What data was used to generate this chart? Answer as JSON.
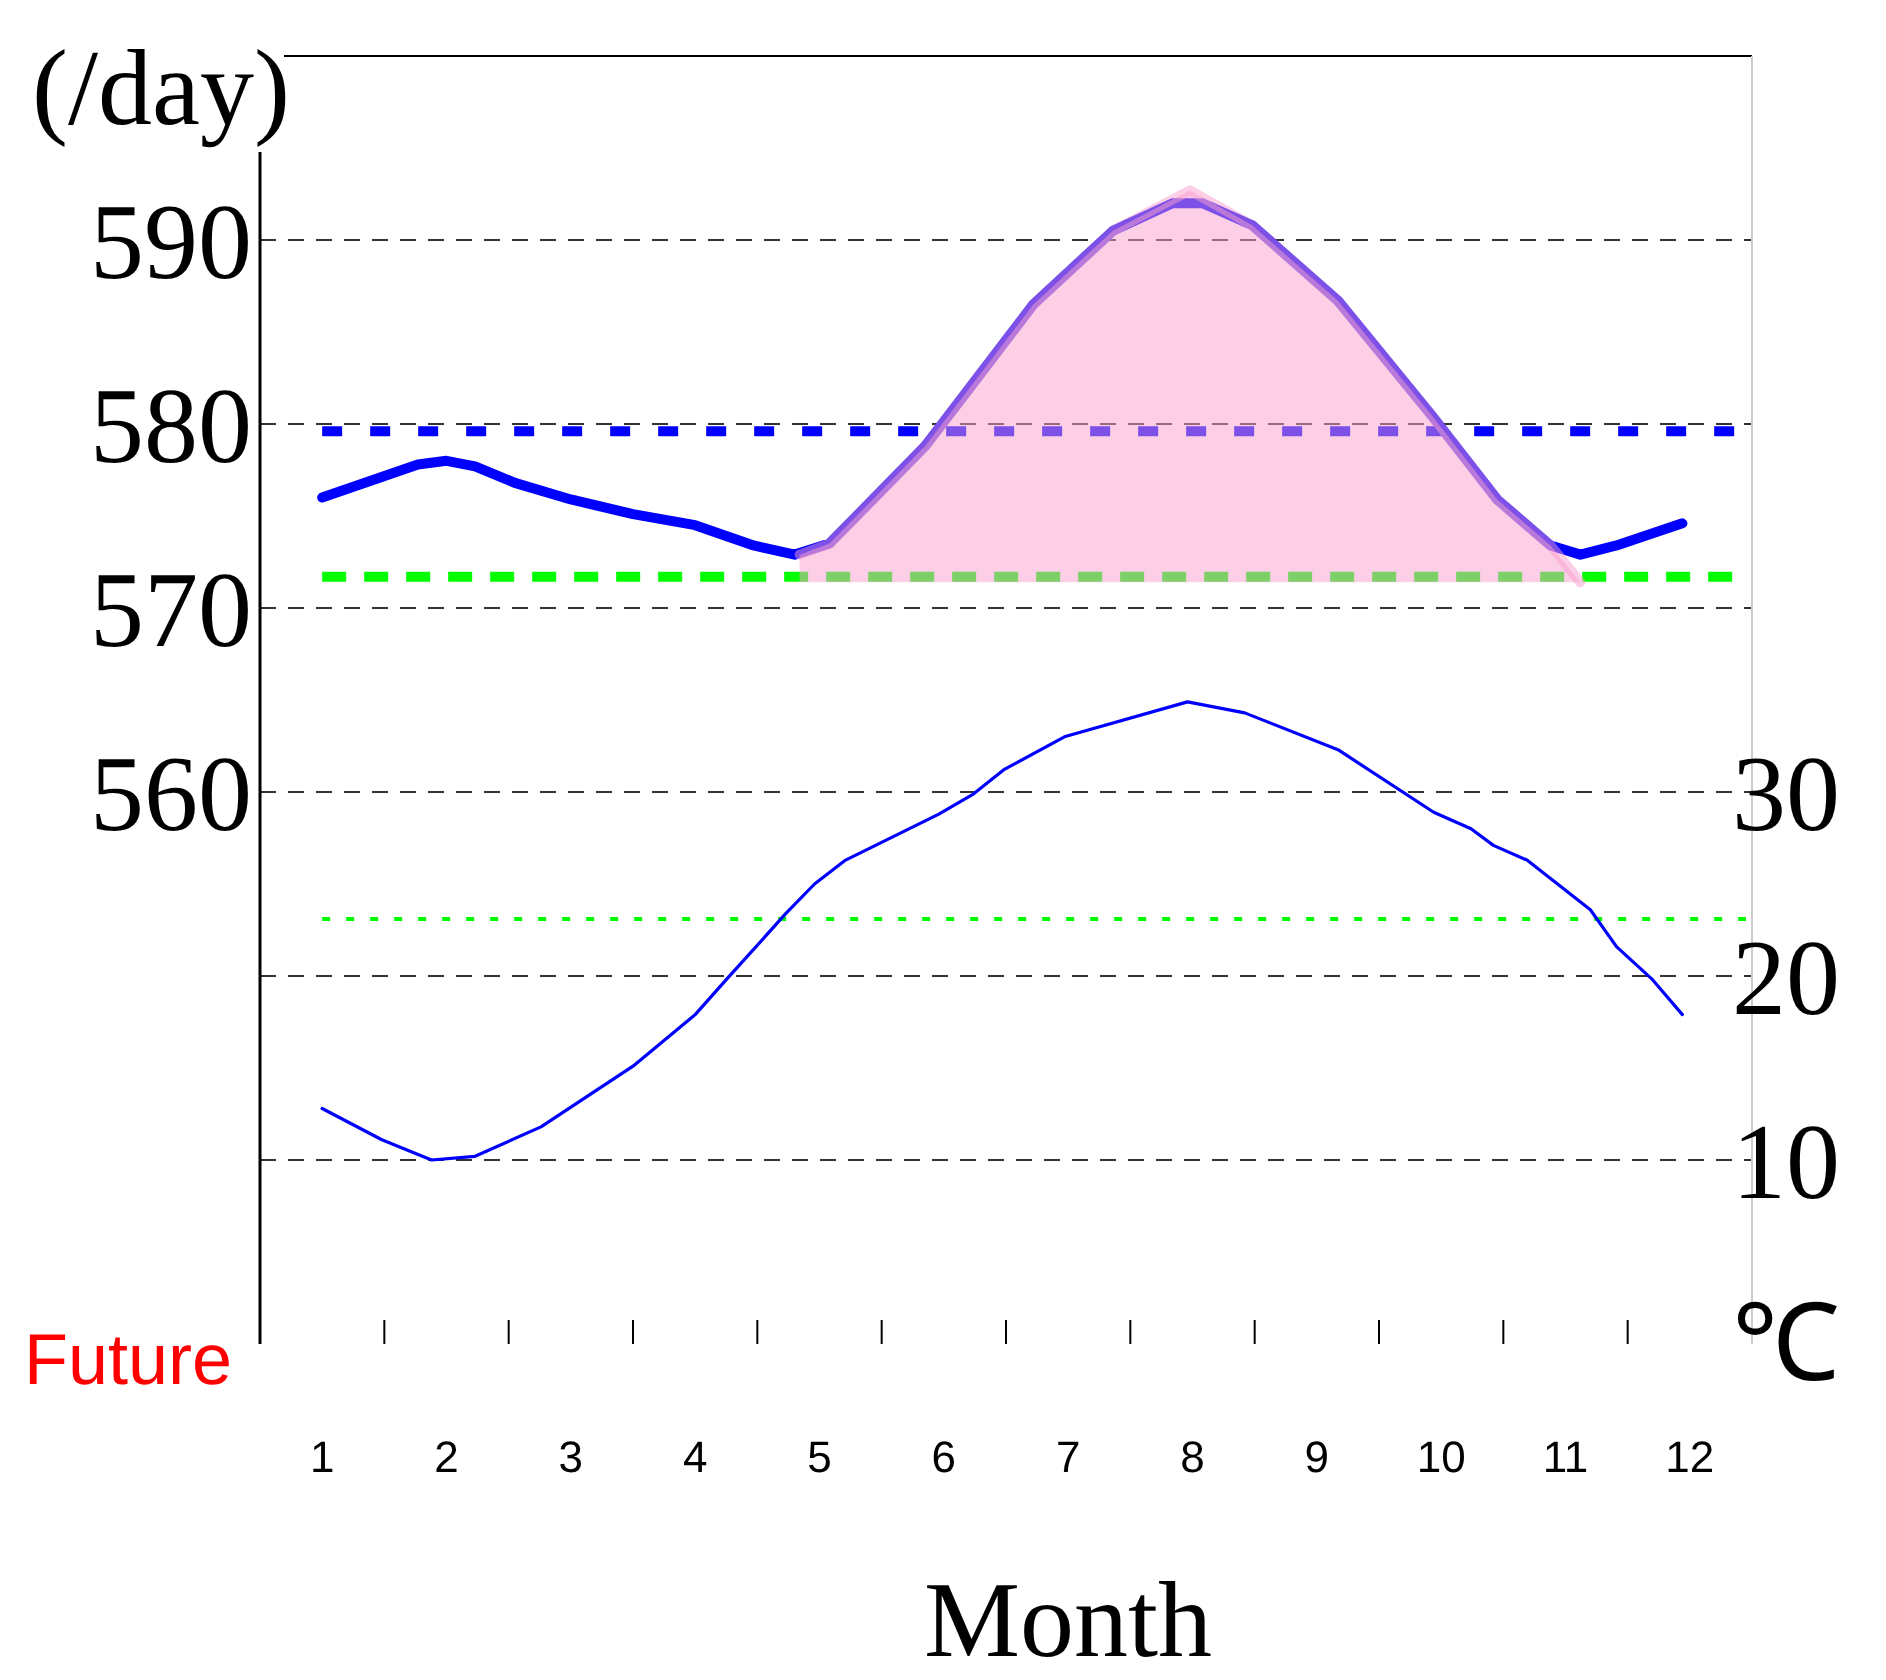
{
  "chart_data": {
    "type": "line",
    "ylabel": "(/day)",
    "y2label": "℃",
    "xlabel": "Month",
    "annotations": [
      "Future"
    ],
    "xlim": [
      0.5,
      12.5
    ],
    "xticks": [
      1,
      {
        "value": 1.5,
        "label": null
      },
      2,
      {
        "value": 2.5,
        "label": null
      },
      3,
      {
        "value": 3.5,
        "label": null
      },
      4,
      {
        "value": 4.5,
        "label": null
      },
      5,
      {
        "value": 5.5,
        "label": null
      },
      6,
      {
        "value": 6.5,
        "label": null
      },
      7,
      {
        "value": 7.5,
        "label": null
      },
      8,
      {
        "value": 8.5,
        "label": null
      },
      9,
      {
        "value": 9.5,
        "label": null
      },
      10,
      {
        "value": 10.5,
        "label": null
      },
      11,
      {
        "value": 11.5,
        "label": null
      },
      12
    ],
    "ylim": [
      530,
      600
    ],
    "yticks": [
      560,
      570,
      580,
      590
    ],
    "y2lim": [
      0,
      70
    ],
    "y2ticks": [
      10,
      20,
      30
    ],
    "grid": true,
    "series": [
      {
        "type": "line",
        "color": "#f9a0cf",
        "x": [
          4.84,
          5.08,
          5.85,
          6.28,
          6.72,
          7.36,
          7.98,
          8.48,
          9.17,
          9.92,
          10.45,
          10.88,
          11.12
        ],
        "values": [
          572.9,
          573.5,
          578.8,
          582.6,
          586.5,
          590.5,
          592.7,
          590.8,
          586.7,
          580.5,
          575.9,
          573.4,
          571.4
        ],
        "upper": [
          572.9,
          573.5,
          578.8,
          582.6,
          586.5,
          590.5,
          592.7,
          590.8,
          586.7,
          580.5,
          575.9,
          573.4,
          571.4
        ],
        "lower": [
          571.4,
          571.4,
          571.4,
          571.4,
          571.4,
          571.4,
          571.4,
          571.4,
          571.4,
          571.4,
          571.4,
          571.4,
          571.4
        ]
      },
      {
        "color": "#0000ff",
        "x": [
          1,
          1.77,
          2,
          2.23,
          2.55,
          3,
          3.5,
          4,
          4.47,
          4.8,
          5.08,
          5.85,
          6.28,
          6.72,
          7.36,
          7.84,
          8.08,
          8.48,
          9.17,
          9.92,
          10.45,
          10.88,
          11.12,
          11.41,
          11.94
        ],
        "values": [
          576.0,
          577.8,
          578.0,
          577.7,
          576.8,
          575.9,
          575.1,
          574.5,
          573.4,
          572.9,
          573.5,
          578.8,
          582.6,
          586.5,
          590.5,
          592.0,
          592.0,
          590.8,
          586.7,
          580.5,
          575.9,
          573.4,
          572.9,
          573.4,
          574.6
        ]
      },
      {
        "axis": "y2",
        "color": "#0000ff",
        "x": [
          1,
          1.48,
          1.88,
          2.23,
          2.76,
          3.5,
          4,
          4.25,
          4.73,
          4.96,
          5.21,
          5.96,
          6.24,
          6.48,
          6.97,
          7.96,
          8.42,
          9.17,
          9.94,
          10.24,
          10.42,
          10.69,
          11.2,
          11.41,
          11.7,
          11.94
        ],
        "values": [
          12.8,
          11.1,
          10.0,
          10.2,
          11.8,
          15.1,
          17.9,
          19.8,
          23.4,
          25.0,
          26.3,
          28.8,
          29.9,
          31.2,
          33.0,
          34.9,
          34.3,
          32.3,
          28.9,
          28.0,
          27.1,
          26.3,
          23.6,
          21.6,
          19.8,
          17.9
        ]
      }
    ],
    "ref_lines": [
      {
        "axis": "y",
        "value": 579.6,
        "color": "#0000ff",
        "line_style": "dotted"
      },
      {
        "axis": "y",
        "value": 571.7,
        "color": "#00ff00",
        "line_style": "dashed"
      },
      {
        "axis": "y2",
        "value": 23.1,
        "color": "#00ff00",
        "line_style": "dotted"
      }
    ]
  }
}
